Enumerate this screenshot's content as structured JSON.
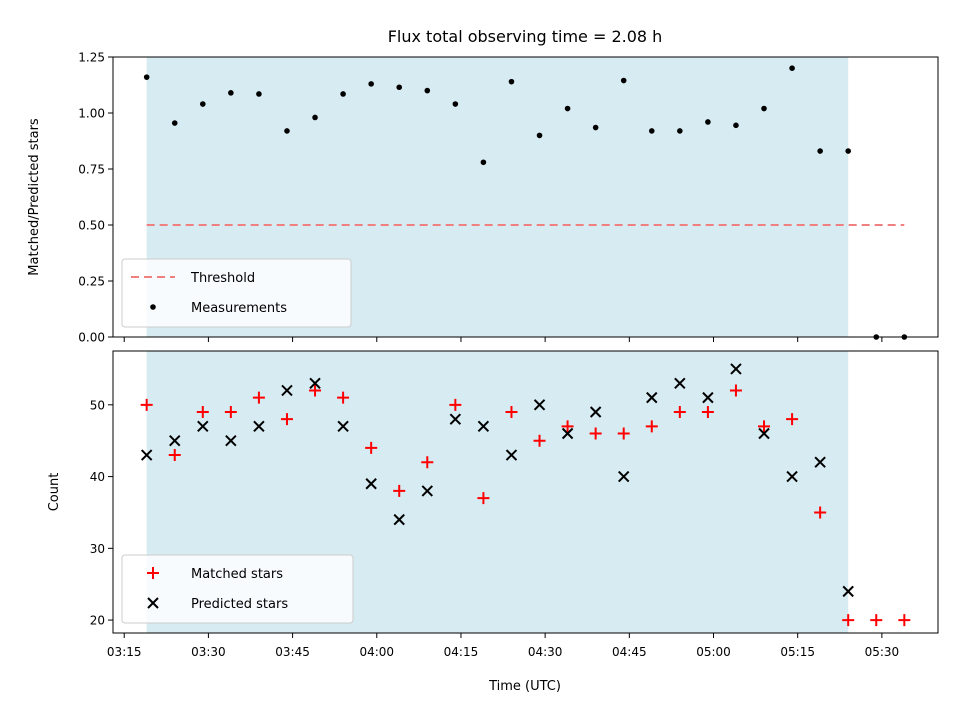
{
  "chart_data": {
    "type": "scatter",
    "title": "Flux total observing time = 2.08 h",
    "xlabel": "Time (UTC)",
    "x_ticks": [
      "03:15",
      "03:30",
      "03:45",
      "04:00",
      "04:15",
      "04:30",
      "04:45",
      "05:00",
      "05:15",
      "05:30"
    ],
    "x_range": [
      "03:13",
      "05:40"
    ],
    "shaded_interval": [
      "03:19",
      "05:24"
    ],
    "shade_color": "#add8e6",
    "times": [
      "03:19",
      "03:24",
      "03:29",
      "03:34",
      "03:39",
      "03:44",
      "03:49",
      "03:54",
      "03:59",
      "04:04",
      "04:09",
      "04:14",
      "04:19",
      "04:24",
      "04:29",
      "04:34",
      "04:39",
      "04:44",
      "04:49",
      "04:54",
      "04:59",
      "05:04",
      "05:09",
      "05:14",
      "05:19",
      "05:24",
      "05:29",
      "05:34"
    ],
    "panels": [
      {
        "ylabel": "Matched/Predicted stars",
        "ylim": [
          0,
          1.25
        ],
        "yticks": [
          "0.00",
          "0.25",
          "0.50",
          "0.75",
          "1.00",
          "1.25"
        ],
        "threshold": {
          "name": "Threshold",
          "value": 0.5,
          "x_range": [
            "03:19",
            "05:34"
          ],
          "color": "#f08080"
        },
        "series": [
          {
            "name": "Measurements",
            "marker": "dot",
            "color": "#000000",
            "values": [
              1.16,
              0.955,
              1.04,
              1.09,
              1.085,
              0.92,
              0.98,
              1.085,
              1.13,
              1.115,
              1.1,
              1.04,
              0.78,
              1.14,
              0.9,
              1.02,
              0.935,
              1.145,
              0.92,
              0.92,
              0.96,
              0.945,
              1.02,
              1.2,
              0.83,
              0.83,
              0.0,
              0.0
            ]
          }
        ],
        "legend": "lower-left"
      },
      {
        "ylabel": "Count",
        "ylim": [
          18.2,
          57.5
        ],
        "yticks": [
          "20",
          "30",
          "40",
          "50"
        ],
        "series": [
          {
            "name": "Matched stars",
            "marker": "plus",
            "color": "#ff0000",
            "values": [
              50,
              43,
              49,
              49,
              51,
              48,
              52,
              51,
              44,
              38,
              42,
              50,
              37,
              49,
              45,
              47,
              46,
              46,
              47,
              49,
              49,
              52,
              47,
              48,
              35,
              20,
              20,
              20
            ]
          },
          {
            "name": "Predicted stars",
            "marker": "x",
            "color": "#000000",
            "values": [
              43,
              45,
              47,
              45,
              47,
              52,
              53,
              47,
              39,
              34,
              38,
              48,
              47,
              43,
              50,
              46,
              49,
              40,
              51,
              53,
              51,
              55,
              46,
              40,
              42,
              24,
              null,
              null
            ]
          }
        ],
        "legend": "lower-left"
      }
    ]
  }
}
